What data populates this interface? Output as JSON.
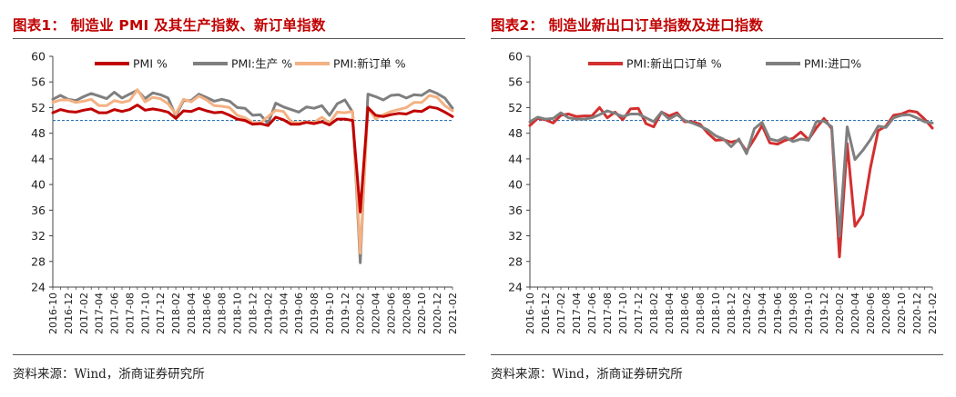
{
  "chart_data": [
    {
      "type": "line",
      "title": "图表1： 制造业 PMI 及其生产指数、新订单指数",
      "source": "资料来源：Wind，浙商证券研究所",
      "ylim": [
        24,
        60
      ],
      "yticks": [
        24,
        28,
        32,
        36,
        40,
        44,
        48,
        52,
        56,
        60
      ],
      "reference_line": 50,
      "legend_position": "top",
      "x": [
        "2016-10",
        "2016-11",
        "2016-12",
        "2017-01",
        "2017-02",
        "2017-03",
        "2017-04",
        "2017-05",
        "2017-06",
        "2017-07",
        "2017-08",
        "2017-09",
        "2017-10",
        "2017-11",
        "2017-12",
        "2018-01",
        "2018-02",
        "2018-03",
        "2018-04",
        "2018-05",
        "2018-06",
        "2018-07",
        "2018-08",
        "2018-09",
        "2018-10",
        "2018-11",
        "2018-12",
        "2019-01",
        "2019-02",
        "2019-03",
        "2019-04",
        "2019-05",
        "2019-06",
        "2019-07",
        "2019-08",
        "2019-09",
        "2019-10",
        "2019-11",
        "2019-12",
        "2020-01",
        "2020-02",
        "2020-03",
        "2020-04",
        "2020-05",
        "2020-06",
        "2020-07",
        "2020-08",
        "2020-09",
        "2020-10",
        "2020-11",
        "2020-12",
        "2021-01",
        "2021-02"
      ],
      "xtick_labels": [
        "2016-10",
        "2016-12",
        "2017-02",
        "2017-04",
        "2017-06",
        "2017-08",
        "2017-10",
        "2017-12",
        "2018-02",
        "2018-04",
        "2018-06",
        "2018-08",
        "2018-10",
        "2018-12",
        "2019-02",
        "2019-04",
        "2019-06",
        "2019-08",
        "2019-10",
        "2019-12",
        "2020-02",
        "2020-04",
        "2020-06",
        "2020-08",
        "2020-10",
        "2020-12",
        "2021-02"
      ],
      "series": [
        {
          "name": "PMI %",
          "color": "#c00000",
          "values": [
            51.2,
            51.7,
            51.4,
            51.3,
            51.6,
            51.8,
            51.2,
            51.2,
            51.7,
            51.4,
            51.7,
            52.4,
            51.6,
            51.8,
            51.6,
            51.3,
            50.3,
            51.5,
            51.4,
            51.9,
            51.5,
            51.2,
            51.3,
            50.8,
            50.2,
            50.0,
            49.4,
            49.5,
            49.2,
            50.5,
            50.1,
            49.4,
            49.4,
            49.7,
            49.5,
            49.8,
            49.3,
            50.2,
            50.2,
            50.0,
            35.7,
            52.0,
            50.8,
            50.6,
            50.9,
            51.1,
            51.0,
            51.5,
            51.4,
            52.1,
            51.9,
            51.3,
            50.6
          ]
        },
        {
          "name": "PMI:生产 %",
          "color": "#7f7f7f",
          "values": [
            53.3,
            53.9,
            53.3,
            53.1,
            53.7,
            54.2,
            53.8,
            53.4,
            54.4,
            53.5,
            54.1,
            54.7,
            53.4,
            54.3,
            54.0,
            53.5,
            50.7,
            53.1,
            53.1,
            54.1,
            53.6,
            53.0,
            53.3,
            53.0,
            52.0,
            51.9,
            50.8,
            50.9,
            49.5,
            52.7,
            52.1,
            51.7,
            51.3,
            52.1,
            51.9,
            52.3,
            50.8,
            52.6,
            53.2,
            51.3,
            27.8,
            54.1,
            53.7,
            53.2,
            53.9,
            54.0,
            53.5,
            54.0,
            53.9,
            54.7,
            54.2,
            53.5,
            51.9
          ]
        },
        {
          "name": "PMI:新订单 %",
          "color": "#f4b183",
          "values": [
            52.8,
            53.2,
            53.2,
            52.8,
            53.0,
            53.3,
            52.3,
            52.3,
            53.1,
            52.8,
            53.1,
            54.8,
            52.9,
            53.6,
            53.4,
            52.6,
            51.0,
            53.3,
            52.9,
            53.8,
            53.2,
            52.3,
            52.2,
            52.0,
            50.8,
            50.4,
            49.7,
            49.6,
            50.6,
            51.6,
            51.4,
            49.8,
            49.6,
            49.8,
            49.7,
            50.5,
            49.6,
            51.3,
            51.2,
            51.4,
            29.3,
            52.0,
            50.2,
            50.9,
            51.4,
            51.7,
            52.0,
            52.8,
            52.8,
            53.9,
            53.6,
            52.3,
            51.5
          ]
        }
      ]
    },
    {
      "type": "line",
      "title": "图表2： 制造业新出口订单指数及进口指数",
      "source": "资料来源：Wind，浙商证券研究所",
      "ylim": [
        24,
        60
      ],
      "yticks": [
        24,
        28,
        32,
        36,
        40,
        44,
        48,
        52,
        56,
        60
      ],
      "reference_line": 50,
      "legend_position": "top",
      "x": [
        "2016-10",
        "2016-11",
        "2016-12",
        "2017-01",
        "2017-02",
        "2017-03",
        "2017-04",
        "2017-05",
        "2017-06",
        "2017-07",
        "2017-08",
        "2017-09",
        "2017-10",
        "2017-11",
        "2017-12",
        "2018-01",
        "2018-02",
        "2018-03",
        "2018-04",
        "2018-05",
        "2018-06",
        "2018-07",
        "2018-08",
        "2018-09",
        "2018-10",
        "2018-11",
        "2018-12",
        "2019-01",
        "2019-02",
        "2019-03",
        "2019-04",
        "2019-05",
        "2019-06",
        "2019-07",
        "2019-08",
        "2019-09",
        "2019-10",
        "2019-11",
        "2019-12",
        "2020-01",
        "2020-02",
        "2020-03",
        "2020-04",
        "2020-05",
        "2020-06",
        "2020-07",
        "2020-08",
        "2020-09",
        "2020-10",
        "2020-11",
        "2020-12",
        "2021-01",
        "2021-02"
      ],
      "xtick_labels": [
        "2016-10",
        "2016-12",
        "2017-02",
        "2017-04",
        "2017-06",
        "2017-08",
        "2017-10",
        "2017-12",
        "2018-02",
        "2018-04",
        "2018-06",
        "2018-08",
        "2018-10",
        "2018-12",
        "2019-02",
        "2019-04",
        "2019-06",
        "2019-08",
        "2019-10",
        "2019-12",
        "2020-02",
        "2020-04",
        "2020-06",
        "2020-08",
        "2020-10",
        "2020-12",
        "2021-02"
      ],
      "series": [
        {
          "name": "PMI:新出口订单 %",
          "color": "#d32f2f",
          "values": [
            49.2,
            50.3,
            50.1,
            49.6,
            50.8,
            51.0,
            50.6,
            50.7,
            50.7,
            52.0,
            50.4,
            51.3,
            50.1,
            51.8,
            51.9,
            49.5,
            49.0,
            51.3,
            50.7,
            51.2,
            49.8,
            49.8,
            49.4,
            48.0,
            46.9,
            47.0,
            46.6,
            46.9,
            45.2,
            47.1,
            49.2,
            46.5,
            46.3,
            46.9,
            47.2,
            48.2,
            47.0,
            48.8,
            50.3,
            48.7,
            28.7,
            46.4,
            33.5,
            35.3,
            42.6,
            48.4,
            49.1,
            50.8,
            51.0,
            51.5,
            51.3,
            50.2,
            48.8
          ]
        },
        {
          "name": "PMI:进口%",
          "color": "#7f7f7f",
          "values": [
            49.8,
            50.5,
            50.2,
            50.3,
            51.2,
            50.4,
            50.2,
            50.2,
            50.4,
            50.9,
            51.5,
            51.1,
            50.6,
            51.0,
            51.0,
            50.4,
            49.8,
            51.3,
            50.2,
            50.9,
            50.0,
            49.6,
            49.1,
            48.5,
            47.6,
            47.1,
            45.9,
            47.1,
            44.8,
            48.7,
            49.7,
            47.1,
            46.8,
            47.4,
            46.7,
            47.1,
            46.9,
            49.8,
            49.9,
            49.0,
            31.9,
            49.0,
            43.9,
            45.3,
            47.0,
            49.1,
            48.9,
            50.4,
            50.8,
            50.9,
            50.4,
            49.8,
            49.6
          ]
        }
      ]
    }
  ]
}
